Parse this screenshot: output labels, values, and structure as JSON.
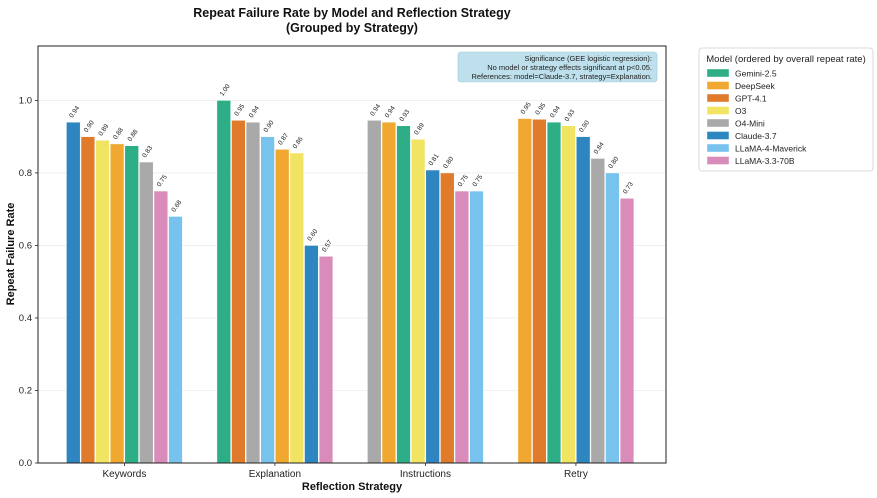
{
  "chart_data": {
    "type": "bar",
    "title": "Repeat Failure Rate by Model and Reflection Strategy",
    "subtitle": "(Grouped by Strategy)",
    "xlabel": "Reflection Strategy",
    "ylabel": "Repeat Failure Rate",
    "ylim": [
      0,
      1.15
    ],
    "yticks": [
      "0.0",
      "0.2",
      "0.4",
      "0.6",
      "0.8",
      "1.0"
    ],
    "grid": true,
    "categories": [
      "Keywords",
      "Explanation",
      "Instructions",
      "Retry"
    ],
    "annotation": [
      "Significance (GEE logistic regression):",
      "No model or strategy effects significant at p<0.05.",
      "References: model=Claude-3.7, strategy=Explanation."
    ],
    "legend_title": "Model (ordered by overall repeat rate)",
    "legend_position": "outside-right",
    "legend": [
      {
        "name": "Gemini-2.5",
        "color": "#2eae86"
      },
      {
        "name": "DeepSeek",
        "color": "#f0a830"
      },
      {
        "name": "GPT-4.1",
        "color": "#e07b2c"
      },
      {
        "name": "O3",
        "color": "#f2e463"
      },
      {
        "name": "O4-Mini",
        "color": "#a9a9a9"
      },
      {
        "name": "Claude-3.7",
        "color": "#2e86c1"
      },
      {
        "name": "LLaMA-4-Maverick",
        "color": "#78c3ee"
      },
      {
        "name": "LLaMA-3.3-70B",
        "color": "#d98cba"
      }
    ],
    "groups": [
      {
        "category": "Keywords",
        "bars": [
          {
            "model": "Claude-3.7",
            "value": 0.94,
            "label": "0.94"
          },
          {
            "model": "GPT-4.1",
            "value": 0.9,
            "label": "0.90"
          },
          {
            "model": "O3",
            "value": 0.89,
            "label": "0.89"
          },
          {
            "model": "DeepSeek",
            "value": 0.88,
            "label": "0.88"
          },
          {
            "model": "Gemini-2.5",
            "value": 0.875,
            "label": "0.88"
          },
          {
            "model": "O4-Mini",
            "value": 0.83,
            "label": "0.83"
          },
          {
            "model": "LLaMA-3.3-70B",
            "value": 0.75,
            "label": "0.75"
          },
          {
            "model": "LLaMA-4-Maverick",
            "value": 0.68,
            "label": "0.68"
          }
        ]
      },
      {
        "category": "Explanation",
        "bars": [
          {
            "model": "Gemini-2.5",
            "value": 1.0,
            "label": "1.00"
          },
          {
            "model": "GPT-4.1",
            "value": 0.945,
            "label": "0.95"
          },
          {
            "model": "O4-Mini",
            "value": 0.94,
            "label": "0.94"
          },
          {
            "model": "LLaMA-4-Maverick",
            "value": 0.9,
            "label": "0.90"
          },
          {
            "model": "DeepSeek",
            "value": 0.865,
            "label": "0.87"
          },
          {
            "model": "O3",
            "value": 0.855,
            "label": "0.86"
          },
          {
            "model": "Claude-3.7",
            "value": 0.6,
            "label": "0.60"
          },
          {
            "model": "LLaMA-3.3-70B",
            "value": 0.57,
            "label": "0.57"
          }
        ]
      },
      {
        "category": "Instructions",
        "bars": [
          {
            "model": "O4-Mini",
            "value": 0.945,
            "label": "0.94"
          },
          {
            "model": "DeepSeek",
            "value": 0.94,
            "label": "0.94"
          },
          {
            "model": "Gemini-2.5",
            "value": 0.93,
            "label": "0.93"
          },
          {
            "model": "O3",
            "value": 0.893,
            "label": "0.89"
          },
          {
            "model": "Claude-3.7",
            "value": 0.808,
            "label": "0.81"
          },
          {
            "model": "GPT-4.1",
            "value": 0.8,
            "label": "0.80"
          },
          {
            "model": "LLaMA-3.3-70B",
            "value": 0.75,
            "label": "0.75"
          },
          {
            "model": "LLaMA-4-Maverick",
            "value": 0.75,
            "label": "0.75"
          }
        ]
      },
      {
        "category": "Retry",
        "bars": [
          {
            "model": "DeepSeek",
            "value": 0.95,
            "label": "0.95"
          },
          {
            "model": "GPT-4.1",
            "value": 0.948,
            "label": "0.95"
          },
          {
            "model": "Gemini-2.5",
            "value": 0.94,
            "label": "0.94"
          },
          {
            "model": "O3",
            "value": 0.93,
            "label": "0.93"
          },
          {
            "model": "Claude-3.7",
            "value": 0.9,
            "label": "0.90"
          },
          {
            "model": "O4-Mini",
            "value": 0.84,
            "label": "0.84"
          },
          {
            "model": "LLaMA-4-Maverick",
            "value": 0.8,
            "label": "0.80"
          },
          {
            "model": "LLaMA-3.3-70B",
            "value": 0.73,
            "label": "0.73"
          }
        ]
      }
    ]
  }
}
